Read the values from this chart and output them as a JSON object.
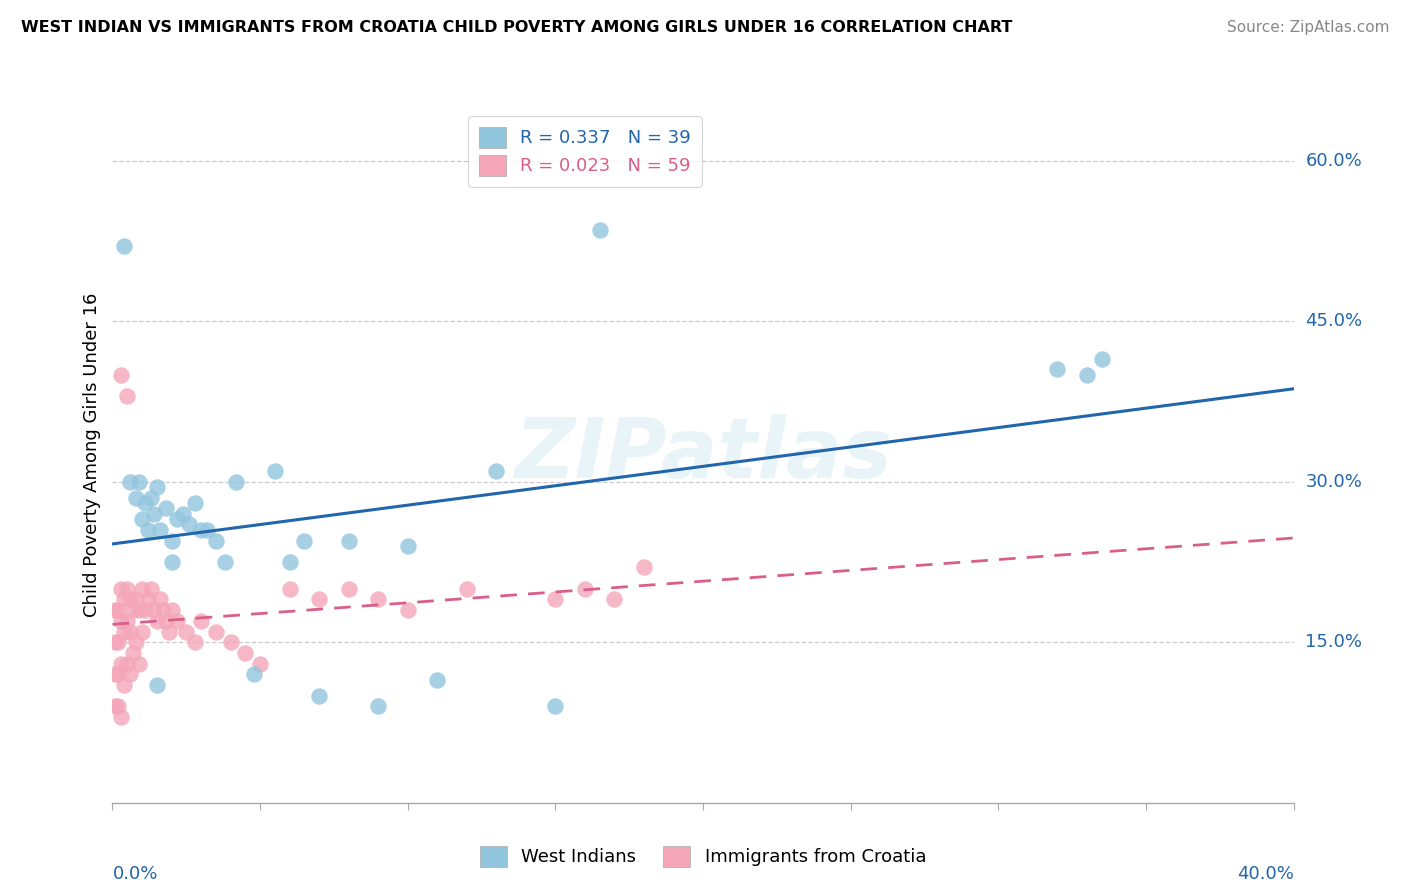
{
  "title": "WEST INDIAN VS IMMIGRANTS FROM CROATIA CHILD POVERTY AMONG GIRLS UNDER 16 CORRELATION CHART",
  "source": "Source: ZipAtlas.com",
  "ylabel": "Child Poverty Among Girls Under 16",
  "xmin": 0.0,
  "xmax": 0.4,
  "ymin": 0.0,
  "ymax": 0.65,
  "right_yticks": [
    0.15,
    0.3,
    0.45,
    0.6
  ],
  "right_yticklabels": [
    "15.0%",
    "30.0%",
    "45.0%",
    "60.0%"
  ],
  "watermark": "ZIPatlas",
  "legend_entry1_label": "R = 0.337   N = 39",
  "legend_entry2_label": "R = 0.023   N = 59",
  "legend_label1": "West Indians",
  "legend_label2": "Immigrants from Croatia",
  "blue_scatter_color": "#92c5de",
  "pink_scatter_color": "#f4a6b8",
  "blue_line_color": "#2166ac",
  "pink_line_color": "#d95f8a",
  "west_indians_x": [
    0.004,
    0.006,
    0.008,
    0.009,
    0.01,
    0.011,
    0.012,
    0.013,
    0.014,
    0.015,
    0.016,
    0.018,
    0.02,
    0.022,
    0.024,
    0.026,
    0.028,
    0.03,
    0.032,
    0.035,
    0.038,
    0.042,
    0.048,
    0.055,
    0.06,
    0.065,
    0.07,
    0.08,
    0.09,
    0.1,
    0.11,
    0.13,
    0.15,
    0.165,
    0.32,
    0.33,
    0.335,
    0.015,
    0.02
  ],
  "west_indians_y": [
    0.52,
    0.3,
    0.285,
    0.3,
    0.265,
    0.28,
    0.255,
    0.285,
    0.27,
    0.295,
    0.255,
    0.275,
    0.225,
    0.265,
    0.27,
    0.26,
    0.28,
    0.255,
    0.255,
    0.245,
    0.225,
    0.3,
    0.12,
    0.31,
    0.225,
    0.245,
    0.1,
    0.245,
    0.09,
    0.24,
    0.115,
    0.31,
    0.09,
    0.535,
    0.405,
    0.4,
    0.415,
    0.11,
    0.245
  ],
  "croatia_x": [
    0.001,
    0.001,
    0.001,
    0.001,
    0.002,
    0.002,
    0.002,
    0.002,
    0.003,
    0.003,
    0.003,
    0.003,
    0.004,
    0.004,
    0.004,
    0.005,
    0.005,
    0.005,
    0.006,
    0.006,
    0.006,
    0.007,
    0.007,
    0.008,
    0.008,
    0.009,
    0.009,
    0.01,
    0.01,
    0.011,
    0.012,
    0.013,
    0.014,
    0.015,
    0.016,
    0.017,
    0.018,
    0.019,
    0.02,
    0.022,
    0.025,
    0.028,
    0.03,
    0.035,
    0.04,
    0.045,
    0.05,
    0.06,
    0.07,
    0.08,
    0.09,
    0.1,
    0.12,
    0.15,
    0.16,
    0.17,
    0.18,
    0.005,
    0.003
  ],
  "croatia_y": [
    0.18,
    0.15,
    0.12,
    0.09,
    0.18,
    0.15,
    0.12,
    0.09,
    0.2,
    0.17,
    0.13,
    0.08,
    0.19,
    0.16,
    0.11,
    0.2,
    0.17,
    0.13,
    0.19,
    0.16,
    0.12,
    0.18,
    0.14,
    0.19,
    0.15,
    0.18,
    0.13,
    0.2,
    0.16,
    0.18,
    0.19,
    0.2,
    0.18,
    0.17,
    0.19,
    0.18,
    0.17,
    0.16,
    0.18,
    0.17,
    0.16,
    0.15,
    0.17,
    0.16,
    0.15,
    0.14,
    0.13,
    0.2,
    0.19,
    0.2,
    0.19,
    0.18,
    0.2,
    0.19,
    0.2,
    0.19,
    0.22,
    0.38,
    0.4
  ]
}
